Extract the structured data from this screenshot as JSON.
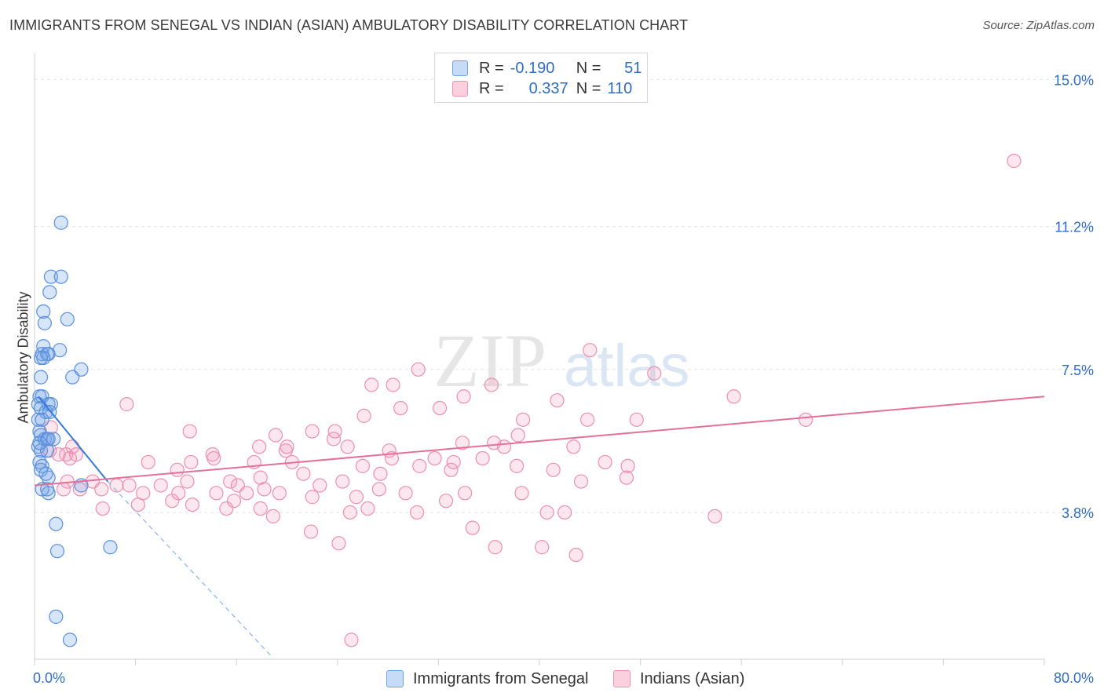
{
  "title": "IMMIGRANTS FROM SENEGAL VS INDIAN (ASIAN) AMBULATORY DISABILITY CORRELATION CHART",
  "source": "Source: ZipAtlas.com",
  "watermark": {
    "zip": "ZIP",
    "atlas": "atlas"
  },
  "legend": {
    "rows": [
      {
        "r_label": "R =",
        "r_value": "-0.190",
        "n_label": "N =",
        "n_value": "51",
        "color": "#6ea0e6"
      },
      {
        "r_label": "R =",
        "r_value": "0.337",
        "n_label": "N =",
        "n_value": "110",
        "color": "#f090b0"
      }
    ]
  },
  "bottom_legend": [
    {
      "label": "Immigrants from Senegal",
      "color": "#6ea0e6"
    },
    {
      "label": "Indians (Asian)",
      "color": "#f090b0"
    }
  ],
  "chart_data": {
    "type": "scatter",
    "title": "IMMIGRANTS FROM SENEGAL VS INDIAN (ASIAN) AMBULATORY DISABILITY CORRELATION CHART",
    "xlabel": "",
    "ylabel": "Ambulatory Disability",
    "xlim": [
      0,
      80
    ],
    "ylim": [
      0,
      15.5
    ],
    "x_tick_labels": [
      {
        "value": 0,
        "label": "0.0%"
      },
      {
        "value": 80,
        "label": "80.0%"
      }
    ],
    "y_tick_labels": [
      {
        "value": 3.8,
        "label": "3.8%"
      },
      {
        "value": 7.5,
        "label": "7.5%"
      },
      {
        "value": 11.2,
        "label": "11.2%"
      },
      {
        "value": 15.0,
        "label": "15.0%"
      }
    ],
    "grid": true,
    "legend_position": "top-center",
    "series": [
      {
        "name": "Immigrants from Senegal",
        "color": "#6ea0e6",
        "r": -0.19,
        "n": 51,
        "trend": {
          "x0": 0.3,
          "y0": 6.8,
          "x1": 5.8,
          "y1": 4.6,
          "dash_to_x": 18.7,
          "dash_to_y": 0.1
        },
        "points": [
          [
            2.1,
            11.3
          ],
          [
            1.3,
            9.9
          ],
          [
            2.1,
            9.9
          ],
          [
            1.2,
            9.5
          ],
          [
            0.7,
            9.0
          ],
          [
            2.6,
            8.8
          ],
          [
            0.8,
            8.7
          ],
          [
            0.7,
            8.1
          ],
          [
            0.6,
            7.9
          ],
          [
            1.1,
            7.9
          ],
          [
            1.0,
            7.9
          ],
          [
            2.0,
            8.0
          ],
          [
            0.7,
            7.8
          ],
          [
            0.5,
            7.8
          ],
          [
            3.7,
            7.5
          ],
          [
            3.0,
            7.3
          ],
          [
            0.5,
            7.3
          ],
          [
            0.4,
            6.8
          ],
          [
            0.6,
            6.8
          ],
          [
            0.3,
            6.6
          ],
          [
            1.1,
            6.6
          ],
          [
            1.3,
            6.6
          ],
          [
            0.5,
            6.5
          ],
          [
            0.9,
            6.4
          ],
          [
            1.2,
            6.4
          ],
          [
            0.3,
            6.2
          ],
          [
            0.6,
            6.2
          ],
          [
            0.4,
            5.9
          ],
          [
            0.5,
            5.8
          ],
          [
            0.8,
            5.7
          ],
          [
            1.0,
            5.7
          ],
          [
            1.1,
            5.7
          ],
          [
            1.5,
            5.7
          ],
          [
            0.3,
            5.5
          ],
          [
            0.5,
            5.4
          ],
          [
            1.0,
            5.4
          ],
          [
            0.4,
            5.1
          ],
          [
            0.6,
            5.0
          ],
          [
            0.5,
            4.9
          ],
          [
            1.1,
            4.7
          ],
          [
            3.7,
            4.5
          ],
          [
            1.0,
            4.4
          ],
          [
            1.1,
            4.3
          ],
          [
            1.7,
            3.5
          ],
          [
            1.8,
            2.8
          ],
          [
            6.0,
            2.9
          ],
          [
            1.7,
            1.1
          ],
          [
            2.8,
            0.5
          ],
          [
            0.6,
            4.4
          ],
          [
            0.9,
            4.8
          ],
          [
            0.4,
            5.6
          ]
        ]
      },
      {
        "name": "Indians (Asian)",
        "color": "#f090b0",
        "r": 0.337,
        "n": 110,
        "trend": {
          "x0": 0.0,
          "y0": 4.5,
          "x1": 80.0,
          "y1": 6.8
        },
        "points": [
          [
            77.6,
            12.9
          ],
          [
            44.0,
            8.0
          ],
          [
            30.4,
            7.5
          ],
          [
            49.1,
            7.4
          ],
          [
            26.7,
            7.1
          ],
          [
            28.4,
            7.1
          ],
          [
            36.2,
            7.1
          ],
          [
            34.0,
            6.8
          ],
          [
            55.4,
            6.8
          ],
          [
            41.4,
            6.7
          ],
          [
            7.3,
            6.6
          ],
          [
            29.0,
            6.5
          ],
          [
            32.1,
            6.5
          ],
          [
            26.1,
            6.3
          ],
          [
            43.8,
            6.2
          ],
          [
            38.7,
            6.2
          ],
          [
            47.7,
            6.2
          ],
          [
            61.1,
            6.2
          ],
          [
            1.3,
            6.0
          ],
          [
            12.3,
            5.9
          ],
          [
            22.0,
            5.9
          ],
          [
            23.8,
            5.9
          ],
          [
            19.1,
            5.8
          ],
          [
            38.3,
            5.8
          ],
          [
            23.7,
            5.7
          ],
          [
            33.9,
            5.6
          ],
          [
            36.4,
            5.6
          ],
          [
            42.7,
            5.5
          ],
          [
            20.0,
            5.5
          ],
          [
            24.8,
            5.5
          ],
          [
            37.2,
            5.5
          ],
          [
            3.0,
            5.5
          ],
          [
            17.8,
            5.5
          ],
          [
            19.9,
            5.4
          ],
          [
            28.1,
            5.4
          ],
          [
            1.2,
            5.4
          ],
          [
            1.9,
            5.3
          ],
          [
            14.1,
            5.3
          ],
          [
            2.5,
            5.3
          ],
          [
            28.3,
            5.2
          ],
          [
            35.5,
            5.2
          ],
          [
            14.2,
            5.2
          ],
          [
            31.7,
            5.2
          ],
          [
            9.0,
            5.1
          ],
          [
            12.4,
            5.1
          ],
          [
            17.4,
            5.1
          ],
          [
            20.4,
            5.1
          ],
          [
            33.2,
            5.1
          ],
          [
            45.2,
            5.1
          ],
          [
            47.0,
            5.0
          ],
          [
            26.0,
            5.0
          ],
          [
            30.5,
            5.0
          ],
          [
            38.2,
            5.0
          ],
          [
            11.3,
            4.9
          ],
          [
            21.3,
            4.8
          ],
          [
            27.4,
            4.8
          ],
          [
            17.9,
            4.7
          ],
          [
            12.1,
            4.6
          ],
          [
            2.6,
            4.6
          ],
          [
            7.5,
            4.5
          ],
          [
            6.5,
            4.5
          ],
          [
            10.0,
            4.5
          ],
          [
            16.1,
            4.5
          ],
          [
            22.6,
            4.5
          ],
          [
            5.3,
            4.4
          ],
          [
            3.6,
            4.4
          ],
          [
            8.6,
            4.3
          ],
          [
            14.4,
            4.3
          ],
          [
            15.5,
            4.6
          ],
          [
            18.2,
            4.4
          ],
          [
            11.4,
            4.3
          ],
          [
            15.8,
            4.1
          ],
          [
            16.8,
            4.3
          ],
          [
            19.4,
            4.3
          ],
          [
            24.4,
            4.6
          ],
          [
            27.3,
            4.4
          ],
          [
            33.0,
            4.9
          ],
          [
            41.1,
            4.9
          ],
          [
            43.3,
            4.6
          ],
          [
            46.9,
            4.7
          ],
          [
            34.1,
            4.3
          ],
          [
            25.5,
            4.2
          ],
          [
            29.4,
            4.3
          ],
          [
            32.6,
            4.1
          ],
          [
            38.6,
            4.3
          ],
          [
            10.9,
            4.1
          ],
          [
            12.5,
            4.0
          ],
          [
            8.2,
            4.0
          ],
          [
            5.4,
            3.9
          ],
          [
            15.2,
            3.9
          ],
          [
            17.9,
            3.9
          ],
          [
            22.0,
            4.2
          ],
          [
            25.0,
            3.8
          ],
          [
            26.4,
            3.9
          ],
          [
            30.3,
            3.8
          ],
          [
            40.6,
            3.8
          ],
          [
            42.0,
            3.8
          ],
          [
            18.9,
            3.7
          ],
          [
            53.9,
            3.7
          ],
          [
            21.9,
            3.3
          ],
          [
            34.7,
            3.4
          ],
          [
            36.5,
            2.9
          ],
          [
            40.2,
            2.9
          ],
          [
            24.1,
            3.0
          ],
          [
            42.9,
            2.7
          ],
          [
            25.1,
            0.5
          ],
          [
            4.6,
            4.6
          ],
          [
            2.3,
            4.4
          ],
          [
            2.8,
            5.2
          ],
          [
            3.3,
            5.3
          ]
        ]
      }
    ]
  }
}
